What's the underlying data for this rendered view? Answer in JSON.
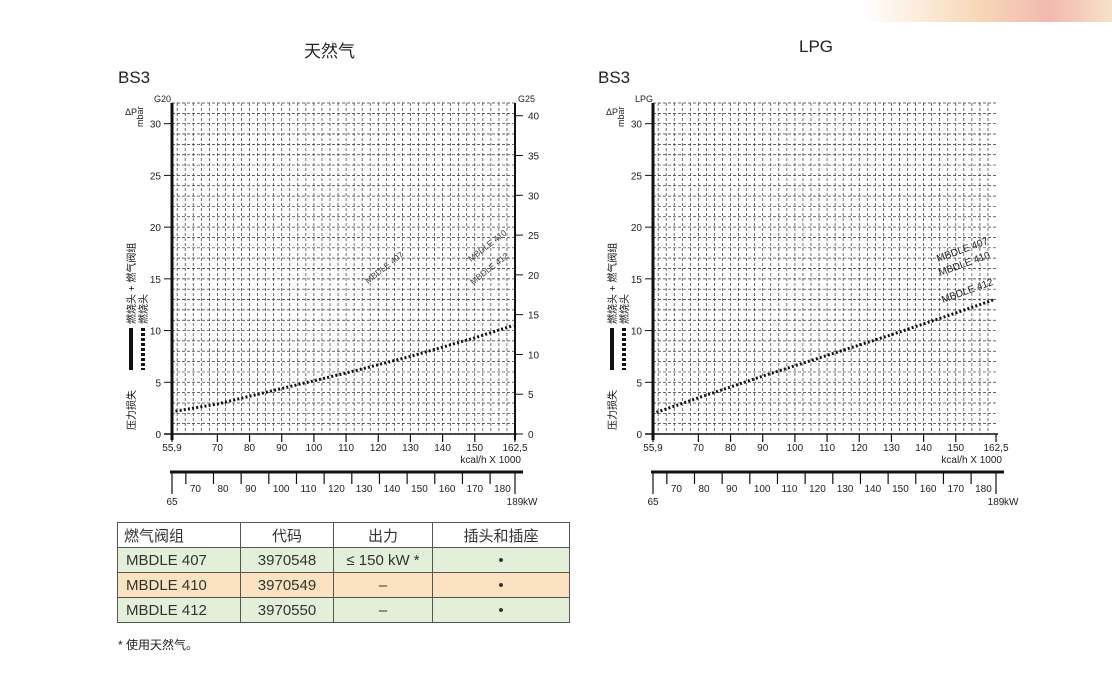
{
  "charts_heading": {
    "left": "天然气",
    "right": "LPG",
    "left_model": "BS3",
    "right_model": "BS3"
  },
  "chart_data": [
    {
      "type": "line",
      "title": "天然气",
      "subtitle": "BS3",
      "ylabel": "ΔP mbar",
      "y_left_label": "G20",
      "y_right_label": "G25",
      "side_legend": [
        "燃烧头 + 燃气阀组",
        "燃烧头",
        "压力损失"
      ],
      "ylim": [
        0,
        32
      ],
      "yticks": [
        0,
        5,
        10,
        15,
        20,
        25,
        30
      ],
      "y2lim": [
        0,
        41.6
      ],
      "y2ticks": [
        0,
        5,
        10,
        15,
        20,
        25,
        30,
        35,
        40
      ],
      "xlim": [
        55.9,
        162.5
      ],
      "xticks": [
        "55,9",
        "70",
        "80",
        "90",
        "100",
        "110",
        "120",
        "130",
        "140",
        "150",
        "162,5"
      ],
      "xtick_values": [
        55.9,
        70,
        80,
        90,
        100,
        110,
        120,
        130,
        140,
        150,
        162.5
      ],
      "xlabel": "kcal/h X 1000",
      "x2lim": [
        65,
        189
      ],
      "x2ticks": [
        "65",
        "70",
        "80",
        "90",
        "100",
        "110",
        "120",
        "130",
        "140",
        "150",
        "160",
        "170",
        "180",
        "189"
      ],
      "x2tick_values": [
        65,
        70,
        80,
        90,
        100,
        110,
        120,
        130,
        140,
        150,
        160,
        170,
        180,
        189
      ],
      "x2label": "kW",
      "series_labels": [
        "MBDLE 407",
        "MBDLE 410",
        "MBDLE 412"
      ],
      "series": [
        {
          "name": "燃烧头",
          "style": "dotted",
          "x": [
            57,
            70,
            90,
            110,
            130,
            150,
            162
          ],
          "y": [
            2.2,
            2.9,
            4.4,
            5.9,
            7.5,
            9.3,
            10.5
          ]
        }
      ],
      "grid": true
    },
    {
      "type": "line",
      "title": "LPG",
      "subtitle": "BS3",
      "ylabel": "ΔP mbar",
      "y_left_label": "LPG",
      "side_legend": [
        "燃烧头 + 燃气阀组",
        "燃烧头",
        "压力损失"
      ],
      "ylim": [
        0,
        32
      ],
      "yticks": [
        0,
        5,
        10,
        15,
        20,
        25,
        30
      ],
      "xlim": [
        55.9,
        162.5
      ],
      "xticks": [
        "55,9",
        "70",
        "80",
        "90",
        "100",
        "110",
        "120",
        "130",
        "140",
        "150",
        "162,5"
      ],
      "xtick_values": [
        55.9,
        70,
        80,
        90,
        100,
        110,
        120,
        130,
        140,
        150,
        162.5
      ],
      "xlabel": "kcal/h X 1000",
      "x2lim": [
        65,
        189
      ],
      "x2ticks": [
        "65",
        "70",
        "80",
        "90",
        "100",
        "110",
        "120",
        "130",
        "140",
        "150",
        "160",
        "170",
        "180",
        "189"
      ],
      "x2tick_values": [
        65,
        70,
        80,
        90,
        100,
        110,
        120,
        130,
        140,
        150,
        160,
        170,
        180,
        189
      ],
      "x2label": "kW",
      "series_labels": [
        "MBDLE 407",
        "MBDLE 410",
        "MBDLE 412"
      ],
      "series": [
        {
          "name": "燃烧头",
          "style": "dotted",
          "x": [
            57,
            70,
            90,
            110,
            130,
            150,
            162
          ],
          "y": [
            2.1,
            3.5,
            5.6,
            7.6,
            9.6,
            11.7,
            13.0
          ]
        }
      ],
      "grid": true
    }
  ],
  "table": {
    "headers": [
      "燃气阀组",
      "代码",
      "出力",
      "插头和插座"
    ],
    "rows": [
      [
        "MBDLE 407",
        "3970548",
        "≤ 150 kW *",
        "•"
      ],
      [
        "MBDLE 410",
        "3970549",
        "–",
        "•"
      ],
      [
        "MBDLE 412",
        "3970550",
        "–",
        "•"
      ]
    ]
  },
  "footnote": "* 使用天然气。"
}
